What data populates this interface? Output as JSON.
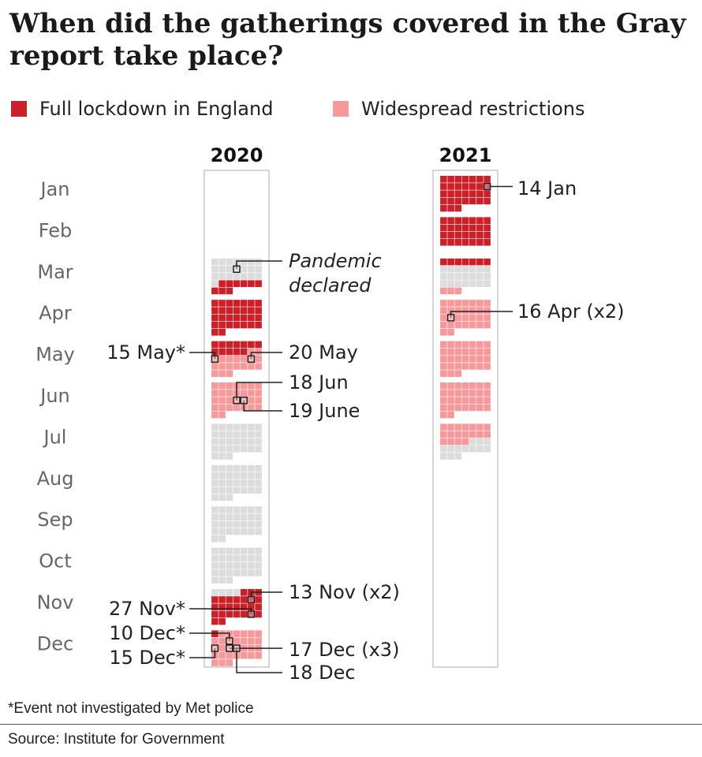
{
  "title": "When did the gatherings covered in the Gray report take place?",
  "colors": {
    "lockdown": "#cc1f28",
    "restrictions": "#f7999a",
    "none": "#dcdcdc"
  },
  "legend": [
    {
      "label": "Full lockdown in England",
      "color": "#cc1f28"
    },
    {
      "label": "Widespread restrictions",
      "color": "#f7999a"
    }
  ],
  "footer": {
    "note": "*Event not investigated by Met police",
    "source": "Source: Institute for Government"
  },
  "chart_data": {
    "type": "calendar-grid",
    "title": "When did the gatherings covered in the Gray report take place?",
    "months": [
      "Jan",
      "Feb",
      "Mar",
      "Apr",
      "May",
      "Jun",
      "Jul",
      "Aug",
      "Sep",
      "Oct",
      "Nov",
      "Dec"
    ],
    "years": [
      {
        "year": "2020",
        "start_month": 3,
        "days_in_month": {
          "3": 31,
          "4": 30,
          "5": 31,
          "6": 30,
          "7": 31,
          "8": 31,
          "9": 30,
          "10": 31,
          "11": 30,
          "12": 31
        },
        "periods": [
          {
            "from": "03-23",
            "to": "05-12",
            "status": "lockdown"
          },
          {
            "from": "05-13",
            "to": "06-30",
            "status": "restrictions"
          },
          {
            "from": "11-05",
            "to": "12-01",
            "status": "lockdown"
          },
          {
            "from": "12-02",
            "to": "12-31",
            "status": "restrictions"
          }
        ]
      },
      {
        "year": "2021",
        "start_month": 1,
        "days_in_month": {
          "1": 31,
          "2": 28,
          "3": 31,
          "4": 30,
          "5": 31,
          "6": 30,
          "7": 31
        },
        "periods": [
          {
            "from": "01-01",
            "to": "03-07",
            "status": "lockdown"
          },
          {
            "from": "03-29",
            "to": "07-18",
            "status": "restrictions"
          }
        ]
      }
    ],
    "events": [
      {
        "year": "2020",
        "date": "03-11",
        "label_lines": [
          "Pandemic",
          "declared"
        ],
        "italic": true,
        "side": "right"
      },
      {
        "year": "2020",
        "date": "05-15",
        "label_lines": [
          "15 May*"
        ],
        "side": "left"
      },
      {
        "year": "2020",
        "date": "05-20",
        "label_lines": [
          "20 May"
        ],
        "side": "right"
      },
      {
        "year": "2020",
        "date": "06-18",
        "label_lines": [
          "18 Jun"
        ],
        "side": "right"
      },
      {
        "year": "2020",
        "date": "06-19",
        "label_lines": [
          "19 June"
        ],
        "side": "right"
      },
      {
        "year": "2020",
        "date": "11-13",
        "label_lines": [
          "13 Nov (x2)"
        ],
        "side": "right"
      },
      {
        "year": "2020",
        "date": "11-27",
        "label_lines": [
          "27 Nov*"
        ],
        "side": "left"
      },
      {
        "year": "2020",
        "date": "12-10",
        "label_lines": [
          "10 Dec*"
        ],
        "side": "left"
      },
      {
        "year": "2020",
        "date": "12-15",
        "label_lines": [
          "15 Dec*"
        ],
        "side": "left"
      },
      {
        "year": "2020",
        "date": "12-17",
        "label_lines": [
          "17 Dec (x3)"
        ],
        "side": "right"
      },
      {
        "year": "2020",
        "date": "12-18",
        "label_lines": [
          "18 Dec"
        ],
        "side": "right"
      },
      {
        "year": "2021",
        "date": "01-14",
        "label_lines": [
          "14 Jan"
        ],
        "side": "right"
      },
      {
        "year": "2021",
        "date": "04-16",
        "label_lines": [
          "16 Apr (x2)"
        ],
        "side": "right"
      }
    ]
  }
}
